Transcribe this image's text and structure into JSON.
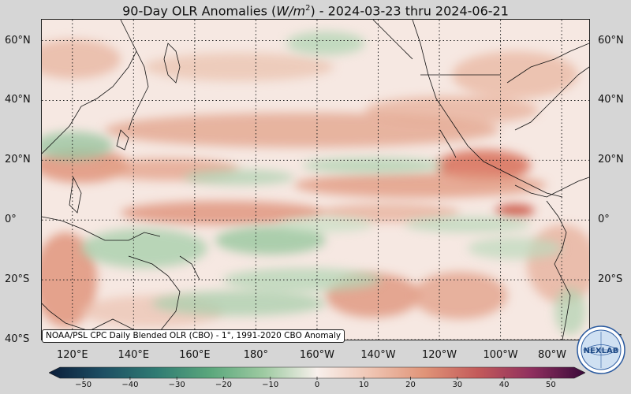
{
  "title": {
    "prefix": "90-Day OLR Anomalies (",
    "unit_base": "W/m",
    "unit_exp": "2",
    "suffix": ") - 2024-03-23 thru 2024-06-21"
  },
  "map": {
    "projection": "equirectangular",
    "lon_range": [
      110,
      289
    ],
    "lat_range": [
      -40,
      67
    ],
    "gridlines": "dotted"
  },
  "lat_labels": [
    "60°N",
    "40°N",
    "20°N",
    "0°",
    "20°S",
    "40°S"
  ],
  "lat_values": [
    60,
    40,
    20,
    0,
    -20,
    -40
  ],
  "lon_labels": [
    "120°E",
    "140°E",
    "160°E",
    "180°",
    "160°W",
    "140°W",
    "120°W",
    "100°W",
    "80°W"
  ],
  "lon_values": [
    120,
    140,
    160,
    180,
    200,
    220,
    240,
    260,
    280
  ],
  "source_text": "NOAA/PSL CPC Daily Blended OLR (CBO) - 1°, 1991-2020 CBO Anomaly",
  "colorbar": {
    "ticks": [
      "−50",
      "−40",
      "−30",
      "−20",
      "−10",
      "0",
      "10",
      "20",
      "30",
      "40",
      "50"
    ],
    "min": -55,
    "max": 55,
    "negative_color": "#2e8b57",
    "positive_color": "#c0453a",
    "neutral_color": "#f8f0ec"
  },
  "logo": {
    "text": "NEXLAB"
  },
  "colors": {
    "background": "#d6d6d6",
    "anomaly_positive": "#d9735a",
    "anomaly_negative": "#6fa77a"
  }
}
